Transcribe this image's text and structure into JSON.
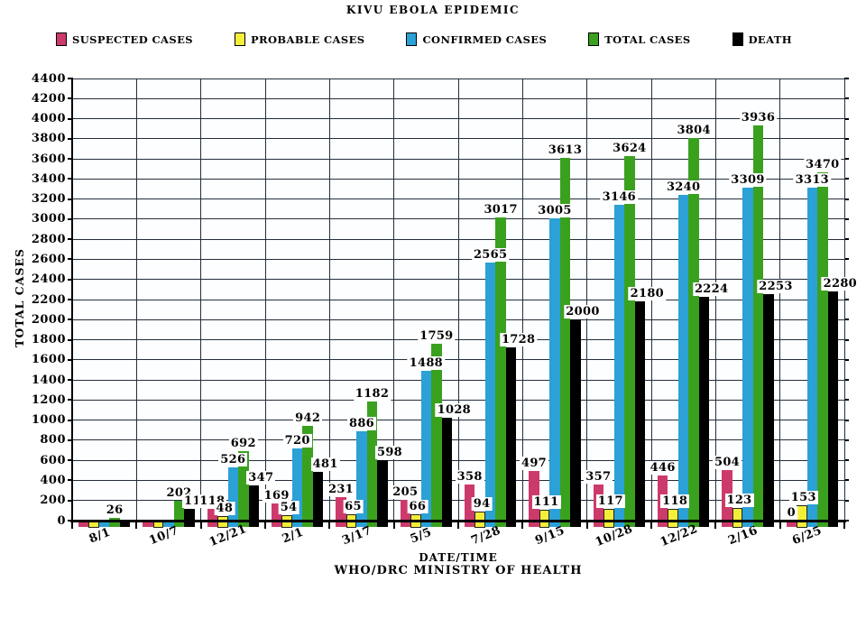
{
  "title": "KIVU EBOLA EPIDEMIC",
  "axis": {
    "y_label": "TOTAL CASES",
    "x_label": "DATE/TIME",
    "x_sublabel": "WHO/DRC MINISTRY OF HEALTH"
  },
  "chart_data": {
    "type": "bar",
    "title": "KIVU EBOLA EPIDEMIC",
    "xlabel": "DATE/TIME",
    "xlabel2": "WHO/DRC MINISTRY OF HEALTH",
    "ylabel": "TOTAL CASES",
    "ylim": [
      0,
      4400
    ],
    "ytick_step": 200,
    "grid": true,
    "legend_position": "top",
    "categories": [
      "8/1",
      "10/7",
      "12/21",
      "2/1",
      "3/17",
      "5/5",
      "7/28",
      "9/15",
      "10/28",
      "12/22",
      "2/16",
      "6/25"
    ],
    "series": [
      {
        "name": "SUSPECTED CASES",
        "color": "#cc3a6b",
        "values": [
          null,
          null,
          118,
          169,
          231,
          205,
          358,
          497,
          357,
          446,
          504,
          0
        ]
      },
      {
        "name": "PROBABLE CASES",
        "color": "#f3ef39",
        "values": [
          null,
          null,
          48,
          54,
          65,
          66,
          94,
          111,
          117,
          118,
          123,
          153
        ]
      },
      {
        "name": "CONFIRMED CASES",
        "color": "#2ba1d6",
        "values": [
          null,
          null,
          526,
          720,
          886,
          1488,
          2565,
          3005,
          3146,
          3240,
          3309,
          3313
        ]
      },
      {
        "name": "TOTAL CASES",
        "color": "#3aa11f",
        "values": [
          26,
          202,
          692,
          942,
          1182,
          1759,
          3017,
          3613,
          3624,
          3804,
          3936,
          3470
        ]
      },
      {
        "name": "DEATH",
        "color": "#000000",
        "values": [
          null,
          115,
          347,
          481,
          598,
          1028,
          1728,
          2000,
          2180,
          2224,
          2253,
          2280
        ]
      }
    ]
  }
}
